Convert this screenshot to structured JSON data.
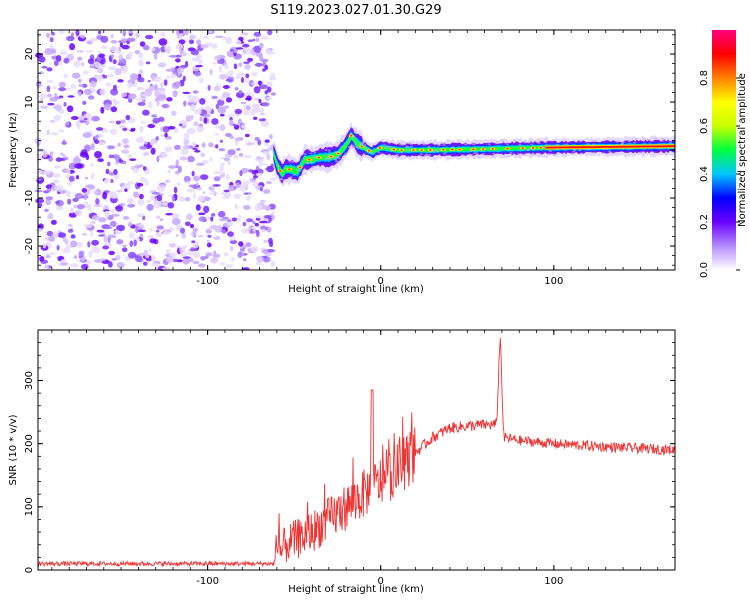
{
  "title": "S119.2023.027.01.30.G29",
  "chart_data": [
    {
      "type": "heatmap",
      "xlabel": "Height of straight line (km)",
      "ylabel": "Frequency (Hz)",
      "xlim": [
        -198,
        170
      ],
      "ylim": [
        -25,
        25
      ],
      "x_ticks": [
        -100,
        0,
        100
      ],
      "x_tick_labels": [
        "-100",
        "0",
        "100"
      ],
      "y_ticks": [
        -20,
        -10,
        0,
        10,
        20
      ],
      "y_tick_labels": [
        "-20",
        "-10",
        "0",
        "10",
        "20"
      ],
      "noise_region_x": [
        -198,
        -62
      ],
      "ridge": [
        {
          "x": -62,
          "y": -0.5
        },
        {
          "x": -60,
          "y": -3
        },
        {
          "x": -57,
          "y": -5
        },
        {
          "x": -55,
          "y": -4
        },
        {
          "x": -52,
          "y": -4
        },
        {
          "x": -48,
          "y": -4.5
        },
        {
          "x": -44,
          "y": -2
        },
        {
          "x": -40,
          "y": -2
        },
        {
          "x": -35,
          "y": -1.5
        },
        {
          "x": -30,
          "y": -1.5
        },
        {
          "x": -25,
          "y": -1
        },
        {
          "x": -20,
          "y": 1
        },
        {
          "x": -17,
          "y": 3
        },
        {
          "x": -14,
          "y": 1.5
        },
        {
          "x": -10,
          "y": 0.5
        },
        {
          "x": -5,
          "y": -0.5
        },
        {
          "x": 0,
          "y": 0.5
        },
        {
          "x": 10,
          "y": 0
        },
        {
          "x": 30,
          "y": 0
        },
        {
          "x": 60,
          "y": 0.2
        },
        {
          "x": 95,
          "y": 0.5
        },
        {
          "x": 170,
          "y": 0.8
        }
      ],
      "colorbar": {
        "label": "Normalized spectral amplitude",
        "range": [
          0,
          1
        ],
        "ticks": [
          0.0,
          0.2,
          0.4,
          0.6,
          0.8
        ],
        "tick_labels": [
          "0.0",
          "0.2",
          "0.4",
          "0.6",
          "0.8"
        ],
        "colors": [
          "#ffffff",
          "#b48cff",
          "#6a00ff",
          "#0000ff",
          "#00c8ff",
          "#00ff40",
          "#c8ff00",
          "#ffff00",
          "#ff8000",
          "#ff0000",
          "#ff0080"
        ]
      }
    },
    {
      "type": "line",
      "xlabel": "Height of straight line (km)",
      "ylabel": "SNR (10 * v/v)",
      "xlim": [
        -198,
        170
      ],
      "ylim": [
        0,
        380
      ],
      "x_ticks": [
        -100,
        0,
        100
      ],
      "x_tick_labels": [
        "-100",
        "0",
        "100"
      ],
      "y_ticks": [
        0,
        100,
        200,
        300
      ],
      "y_tick_labels": [
        "0",
        "100",
        "200",
        "300"
      ],
      "color": "#ee3333",
      "series_trend": [
        {
          "x": -198,
          "y": 10
        },
        {
          "x": -62,
          "y": 10
        },
        {
          "x": -55,
          "y": 40
        },
        {
          "x": -40,
          "y": 60
        },
        {
          "x": -30,
          "y": 80
        },
        {
          "x": -20,
          "y": 100
        },
        {
          "x": -10,
          "y": 120
        },
        {
          "x": 0,
          "y": 140
        },
        {
          "x": 10,
          "y": 160
        },
        {
          "x": 20,
          "y": 185
        },
        {
          "x": 30,
          "y": 210
        },
        {
          "x": 40,
          "y": 225
        },
        {
          "x": 50,
          "y": 228
        },
        {
          "x": 60,
          "y": 230
        },
        {
          "x": 67,
          "y": 230
        },
        {
          "x": 69,
          "y": 375
        },
        {
          "x": 71,
          "y": 210
        },
        {
          "x": 80,
          "y": 205
        },
        {
          "x": 100,
          "y": 200
        },
        {
          "x": 130,
          "y": 195
        },
        {
          "x": 170,
          "y": 190
        }
      ]
    }
  ]
}
